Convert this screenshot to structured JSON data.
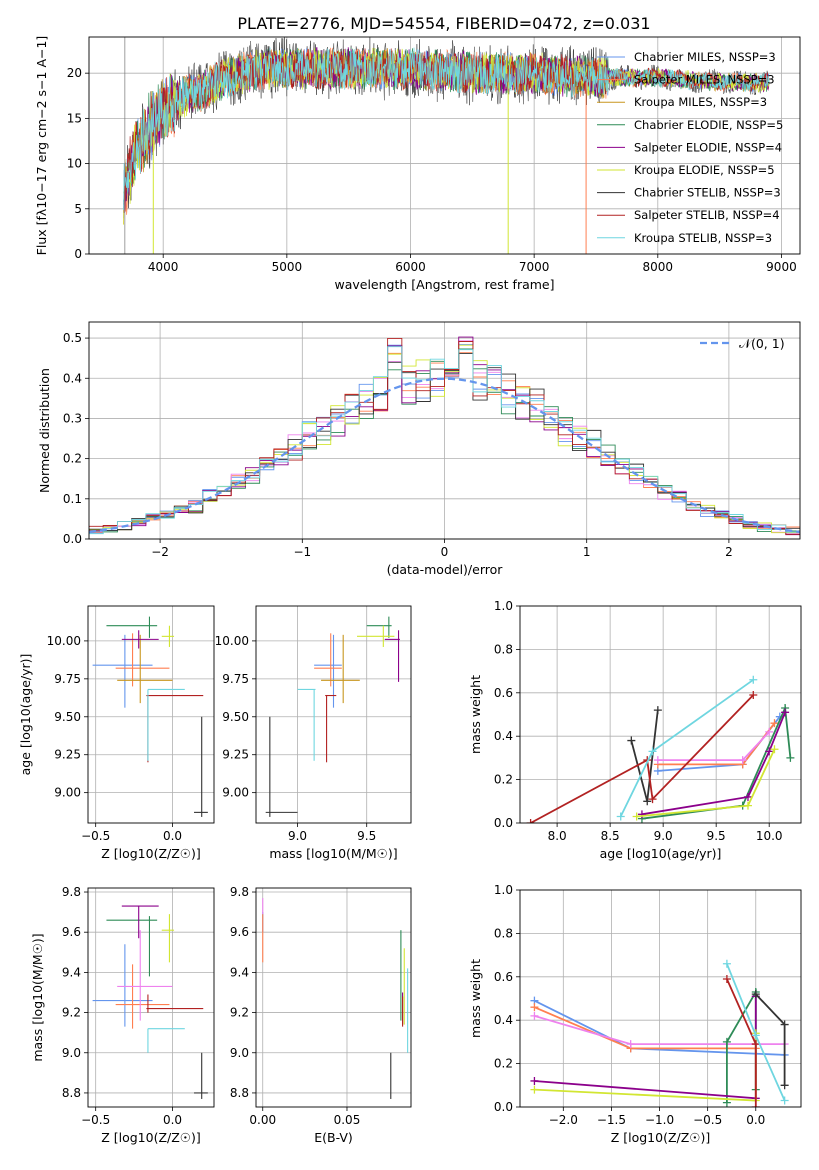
{
  "figure_title": "PLATE=2776, MJD=54554, FIBERID=0472, z=0.031",
  "colors": [
    "#6495ed",
    "#ff7f50",
    "#c8961e",
    "#2e8b57",
    "#8b008b",
    "#d2e632",
    "#333333",
    "#b22222",
    "#6fd6e0"
  ],
  "colors_b": [
    "#6495ed",
    "#ff7f50",
    "#ee82ee",
    "#2e8b57",
    "#8b008b",
    "#d2e632",
    "#333333",
    "#b22222",
    "#6fd6e0"
  ],
  "chart_data": [
    {
      "id": "spectrum",
      "type": "line",
      "xlabel": "wavelength [Angstrom, rest frame]",
      "ylabel": "Flux [f$_\\lambda$10$^{-17}$ erg cm$^{-2}$ s$^{-1}$ A$^{-1}$]",
      "ylabel_text": "Flux [fλ10−17 erg cm−2 s−1 A−1]",
      "xlim": [
        3400,
        9150
      ],
      "ylim": [
        0,
        24
      ],
      "xticks": [
        4000,
        5000,
        6000,
        7000,
        8000,
        9000
      ],
      "yticks": [
        0,
        5,
        10,
        15,
        20
      ],
      "legend": [
        "Chabrier MILES, NSSP=3",
        "Salpeter MILES, NSSP=3",
        "Kroupa MILES, NSSP=3",
        "Chabrier ELODIE, NSSP=5",
        "Salpeter ELODIE, NSSP=4",
        "Kroupa ELODIE, NSSP=5",
        "Chabrier STELIB, NSSP=3",
        "Salpeter STELIB, NSSP=4",
        "Kroupa STELIB, NSSP=3"
      ],
      "continuum_anchors": [
        [
          3680,
          7
        ],
        [
          3800,
          12
        ],
        [
          3950,
          15
        ],
        [
          4100,
          17
        ],
        [
          4300,
          18
        ],
        [
          4500,
          19.5
        ],
        [
          4800,
          20.5
        ],
        [
          5200,
          20.5
        ],
        [
          5600,
          20.5
        ],
        [
          6000,
          20.5
        ],
        [
          6500,
          20
        ],
        [
          7000,
          20
        ],
        [
          7500,
          19.5
        ],
        [
          8000,
          19.5
        ],
        [
          8500,
          19
        ],
        [
          8900,
          19
        ]
      ],
      "data_range": [
        3680,
        8900
      ]
    },
    {
      "id": "residuals",
      "type": "histogram",
      "xlabel": "(data-model)/error",
      "ylabel": "Normed distribution",
      "xlim": [
        -2.5,
        2.5
      ],
      "ylim": [
        0,
        0.54
      ],
      "xticks": [
        -2,
        -1,
        0,
        1,
        2
      ],
      "yticks": [
        0.0,
        0.1,
        0.2,
        0.3,
        0.4,
        0.5
      ],
      "legend": [
        "$\\mathcal{N}(0,1)$"
      ],
      "legend_text": "𝒩(0, 1)",
      "bin_width": 0.1
    },
    {
      "id": "age-vs-Z",
      "type": "errorbar",
      "xlabel": "Z [log10(Z/Z☉)]",
      "ylabel": "age  [log10(age/yr)]",
      "xlim": [
        -0.55,
        0.27
      ],
      "ylim": [
        8.8,
        10.23
      ],
      "xticks": [
        -0.5,
        0.0
      ],
      "yticks": [
        9.0,
        9.25,
        9.5,
        9.75,
        10.0
      ],
      "points": [
        {
          "x": -0.31,
          "y": 9.84,
          "xerr": [
            0.21,
            0.18
          ],
          "yerr": [
            0.28,
            0.2
          ]
        },
        {
          "x": -0.26,
          "y": 9.82,
          "xerr": [
            0.11,
            0.24
          ],
          "yerr": [
            0.12,
            0.23
          ]
        },
        {
          "x": -0.21,
          "y": 9.74,
          "xerr": [
            0.15,
            0.21
          ],
          "yerr": [
            0.15,
            0.3
          ]
        },
        {
          "x": -0.15,
          "y": 10.1,
          "xerr": [
            0.28,
            0.05
          ],
          "yerr": [
            0.08,
            0.06
          ]
        },
        {
          "x": -0.22,
          "y": 10.01,
          "xerr": [
            0.11,
            0.13
          ],
          "yerr": [
            0.06,
            0.06
          ]
        },
        {
          "x": -0.02,
          "y": 10.03,
          "xerr": [
            0.05,
            0.03
          ],
          "yerr": [
            0.07,
            0.07
          ]
        },
        {
          "x": 0.19,
          "y": 8.87,
          "xerr": [
            0.05,
            0.04
          ],
          "yerr": [
            0.03,
            0.63
          ]
        },
        {
          "x": -0.16,
          "y": 9.64,
          "xerr": [
            0.01,
            0.36
          ],
          "yerr": [
            0.44,
            0.0
          ]
        },
        {
          "x": -0.16,
          "y": 9.68,
          "xerr": [
            0.0,
            0.24
          ],
          "yerr": [
            0.47,
            0.0
          ]
        }
      ]
    },
    {
      "id": "age-vs-mass",
      "type": "errorbar",
      "xlabel": "mass [log10(M/M☉)]",
      "ylabel": "",
      "xlim": [
        8.7,
        9.82
      ],
      "ylim": [
        8.8,
        10.23
      ],
      "xticks": [
        9.0,
        9.5
      ],
      "yticks": [
        9.0,
        9.25,
        9.5,
        9.75,
        10.0
      ],
      "points": [
        {
          "x": 9.26,
          "y": 9.84,
          "xerr": [
            0.14,
            0.06
          ],
          "yerr": [
            0.28,
            0.2
          ]
        },
        {
          "x": 9.24,
          "y": 9.82,
          "xerr": [
            0.12,
            0.08
          ],
          "yerr": [
            0.12,
            0.23
          ]
        },
        {
          "x": 9.33,
          "y": 9.74,
          "xerr": [
            0.16,
            0.12
          ],
          "yerr": [
            0.15,
            0.3
          ]
        },
        {
          "x": 9.66,
          "y": 10.1,
          "xerr": [
            0.16,
            0.02
          ],
          "yerr": [
            0.08,
            0.06
          ]
        },
        {
          "x": 9.73,
          "y": 10.01,
          "xerr": [
            0.1,
            0.01
          ],
          "yerr": [
            0.28,
            0.06
          ]
        },
        {
          "x": 9.62,
          "y": 10.03,
          "xerr": [
            0.19,
            0.08
          ],
          "yerr": [
            0.07,
            0.07
          ]
        },
        {
          "x": 8.8,
          "y": 8.87,
          "xerr": [
            0.03,
            0.2
          ],
          "yerr": [
            0.03,
            0.63
          ]
        },
        {
          "x": 9.21,
          "y": 9.64,
          "xerr": [
            0.01,
            0.07
          ],
          "yerr": [
            0.44,
            0.0
          ]
        },
        {
          "x": 9.12,
          "y": 9.68,
          "xerr": [
            0.12,
            0.01
          ],
          "yerr": [
            0.47,
            0.0
          ]
        }
      ]
    },
    {
      "id": "massweight-vs-age",
      "type": "line",
      "xlabel": "age  [log10(age/yr)]",
      "ylabel": "mass weight",
      "xlim": [
        7.65,
        10.3
      ],
      "ylim": [
        0,
        1
      ],
      "xticks": [
        8.0,
        8.5,
        9.0,
        9.5,
        10.0
      ],
      "yticks": [
        0.0,
        0.2,
        0.4,
        0.6,
        0.8,
        1.0
      ],
      "series": [
        {
          "x": [
            8.95,
            9.75,
            10.1
          ],
          "y": [
            0.24,
            0.27,
            0.49
          ]
        },
        {
          "x": [
            8.95,
            9.75,
            10.05
          ],
          "y": [
            0.27,
            0.27,
            0.46
          ]
        },
        {
          "x": [
            8.95,
            9.75,
            10.0
          ],
          "y": [
            0.29,
            0.29,
            0.42
          ]
        },
        {
          "x": [
            8.8,
            9.75,
            10.15,
            10.2
          ],
          "y": [
            0.02,
            0.08,
            0.53,
            0.3
          ]
        },
        {
          "x": [
            8.8,
            9.8,
            10.0,
            10.15
          ],
          "y": [
            0.04,
            0.12,
            0.33,
            0.51
          ]
        },
        {
          "x": [
            8.75,
            9.8,
            10.05
          ],
          "y": [
            0.03,
            0.08,
            0.34
          ]
        },
        {
          "x": [
            8.7,
            8.85,
            8.95
          ],
          "y": [
            0.38,
            0.1,
            0.52
          ]
        },
        {
          "x": [
            7.75,
            8.85,
            8.9,
            9.85
          ],
          "y": [
            0.0,
            0.29,
            0.11,
            0.59
          ]
        },
        {
          "x": [
            8.6,
            8.9,
            9.85
          ],
          "y": [
            0.03,
            0.33,
            0.66
          ]
        }
      ]
    },
    {
      "id": "mass-vs-Z",
      "type": "errorbar",
      "xlabel": "Z [log10(Z/Z☉)]",
      "ylabel": "mass [log10(M/M☉)]",
      "xlim": [
        -0.55,
        0.27
      ],
      "ylim": [
        8.73,
        9.82
      ],
      "xticks": [
        -0.5,
        0.0
      ],
      "yticks": [
        8.8,
        9.0,
        9.2,
        9.4,
        9.6,
        9.8
      ],
      "points": [
        {
          "x": -0.31,
          "y": 9.26,
          "xerr": [
            0.21,
            0.18
          ],
          "yerr": [
            0.13,
            0.28
          ]
        },
        {
          "x": -0.26,
          "y": 9.24,
          "xerr": [
            0.11,
            0.24
          ],
          "yerr": [
            0.12,
            0.2
          ]
        },
        {
          "x": -0.21,
          "y": 9.33,
          "xerr": [
            0.15,
            0.21
          ],
          "yerr": [
            0.17,
            0.28
          ]
        },
        {
          "x": -0.15,
          "y": 9.66,
          "xerr": [
            0.28,
            0.05
          ],
          "yerr": [
            0.28,
            0.02
          ]
        },
        {
          "x": -0.22,
          "y": 9.73,
          "xerr": [
            0.11,
            0.13
          ],
          "yerr": [
            0.16,
            0.0
          ]
        },
        {
          "x": -0.02,
          "y": 9.61,
          "xerr": [
            0.05,
            0.03
          ],
          "yerr": [
            0.16,
            0.08
          ]
        },
        {
          "x": 0.19,
          "y": 8.8,
          "xerr": [
            0.05,
            0.04
          ],
          "yerr": [
            0.03,
            0.2
          ]
        },
        {
          "x": -0.16,
          "y": 9.22,
          "xerr": [
            0.01,
            0.36
          ],
          "yerr": [
            0.02,
            0.07
          ]
        },
        {
          "x": -0.16,
          "y": 9.12,
          "xerr": [
            0.0,
            0.24
          ],
          "yerr": [
            0.12,
            0.0
          ]
        }
      ]
    },
    {
      "id": "mass-vs-EBV",
      "type": "errorbar",
      "xlabel": "E(B-V)",
      "ylabel": "",
      "xlim": [
        -0.004,
        0.088
      ],
      "ylim": [
        8.73,
        9.82
      ],
      "xticks": [
        0.0,
        0.05
      ],
      "yticks": [
        8.8,
        9.0,
        9.2,
        9.4,
        9.6,
        9.8
      ],
      "points": [
        {
          "x": 0.0,
          "y": 9.66,
          "xerr": [
            0,
            0
          ],
          "yerr": [
            0.06,
            0.04
          ]
        },
        {
          "x": 0.0,
          "y": 9.61,
          "xerr": [
            0,
            0
          ],
          "yerr": [
            0.16,
            0.08
          ]
        },
        {
          "x": 0.0,
          "y": 9.73,
          "xerr": [
            0,
            0
          ],
          "yerr": [
            0.04,
            0.04
          ]
        },
        {
          "x": 0.082,
          "y": 9.33,
          "xerr": [
            0,
            0
          ],
          "yerr": [
            0.17,
            0.28
          ]
        },
        {
          "x": 0.083,
          "y": 9.22,
          "xerr": [
            0,
            0
          ],
          "yerr": [
            0.08,
            0.08
          ]
        },
        {
          "x": 0.084,
          "y": 9.34,
          "xerr": [
            0,
            0
          ],
          "yerr": [
            0.2,
            0.18
          ]
        },
        {
          "x": 0.076,
          "y": 8.8,
          "xerr": [
            0,
            0
          ],
          "yerr": [
            0.03,
            0.2
          ]
        },
        {
          "x": 0.083,
          "y": 9.2,
          "xerr": [
            0,
            0
          ],
          "yerr": [
            0.07,
            0.08
          ]
        },
        {
          "x": 0.086,
          "y": 9.12,
          "xerr": [
            0,
            0
          ],
          "yerr": [
            0.12,
            0.3
          ]
        }
      ]
    },
    {
      "id": "massweight-vs-Z",
      "type": "line",
      "xlabel": "Z [log10(Z/Z☉)]",
      "ylabel": "mass weight",
      "xlim": [
        -2.45,
        0.47
      ],
      "ylim": [
        0,
        1
      ],
      "xticks": [
        -2.0,
        -1.5,
        -1.0,
        -0.5,
        0.0
      ],
      "yticks": [
        0.0,
        0.2,
        0.4,
        0.6,
        0.8,
        1.0
      ],
      "series": [
        {
          "x": [
            -2.3,
            -1.3,
            0.3
          ],
          "y": [
            0.49,
            0.27,
            0.24
          ]
        },
        {
          "x": [
            -2.3,
            -1.3,
            0.0
          ],
          "y": [
            0.46,
            0.27,
            0.27
          ]
        },
        {
          "x": [
            -2.3,
            -1.3,
            0.3
          ],
          "y": [
            0.42,
            0.29,
            0.29
          ]
        },
        {
          "x": [
            -0.3,
            -0.3,
            0.0,
            0.0
          ],
          "y": [
            0.02,
            0.3,
            0.53,
            0.08
          ]
        },
        {
          "x": [
            -2.3,
            0.0,
            0.0
          ],
          "y": [
            0.12,
            0.04,
            0.51
          ]
        },
        {
          "x": [
            -2.3,
            0.0,
            0.0
          ],
          "y": [
            0.08,
            0.03,
            0.34
          ]
        },
        {
          "x": [
            0.0,
            0.3,
            0.3
          ],
          "y": [
            0.52,
            0.38,
            0.1
          ]
        },
        {
          "x": [
            -0.3,
            0.0,
            0.0
          ],
          "y": [
            0.59,
            0.29,
            0.0
          ]
        },
        {
          "x": [
            -0.3,
            0.0,
            0.3
          ],
          "y": [
            0.66,
            0.33,
            0.03
          ]
        }
      ]
    }
  ]
}
